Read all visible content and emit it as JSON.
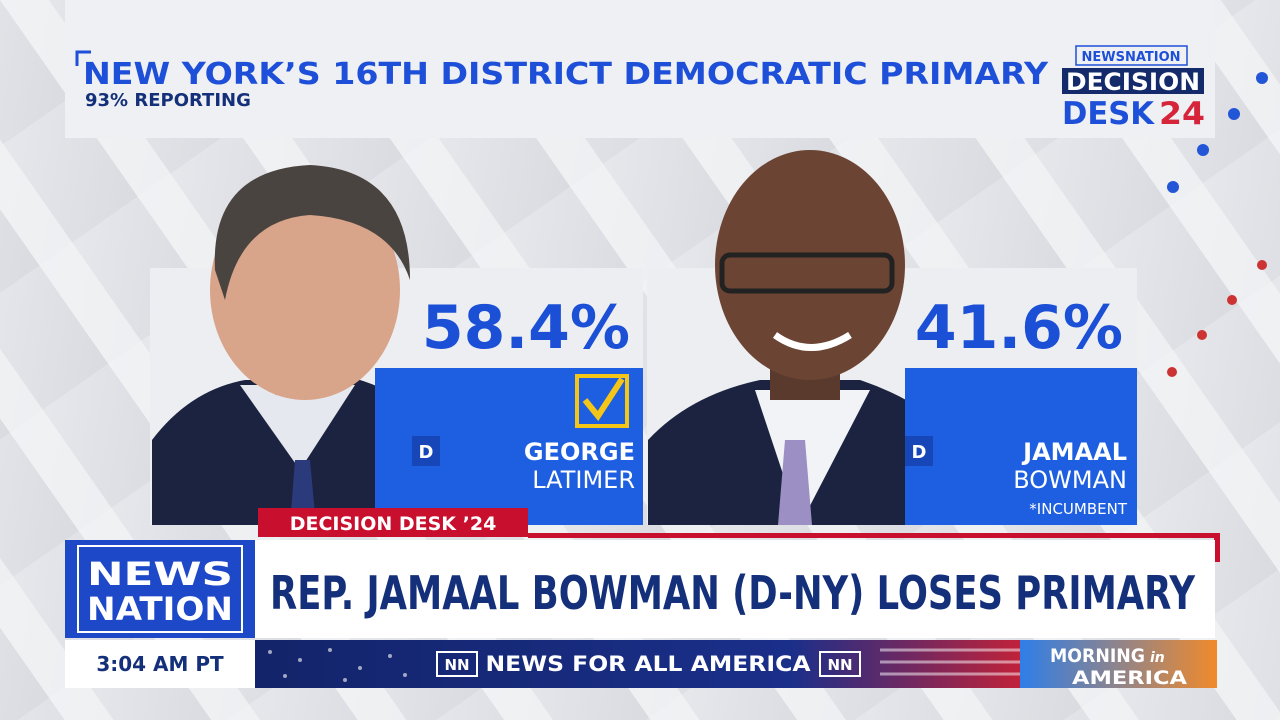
{
  "header": {
    "title": "NEW YORK’S 16TH DISTRICT DEMOCRATIC PRIMARY",
    "reporting": "93% REPORTING",
    "logo": {
      "network": "NEWSNATION",
      "line1": "DECISION",
      "line2a": "DESK",
      "line2b": "24"
    }
  },
  "candidates": [
    {
      "first_name": "GEORGE",
      "last_name": "LATIMER",
      "party": "D",
      "percent": "58.4%"
    },
    {
      "first_name": "JAMAAL",
      "last_name": "BOWMAN",
      "party": "D",
      "percent": "41.6%",
      "note": "*INCUMBENT"
    }
  ],
  "lower_third": {
    "tag": "DECISION DESK ’24",
    "headline": "REP. JAMAAL BOWMAN (D-NY) LOSES PRIMARY",
    "network_logo": [
      "NEWS",
      "NATION"
    ],
    "time": "3:04 AM PT",
    "ticker": {
      "badge": "NN",
      "text": "NEWS FOR ALL AMERICA"
    },
    "show_logo": {
      "line1a": "MORNING",
      "line1b": "in",
      "line2": "AMERICA"
    }
  }
}
